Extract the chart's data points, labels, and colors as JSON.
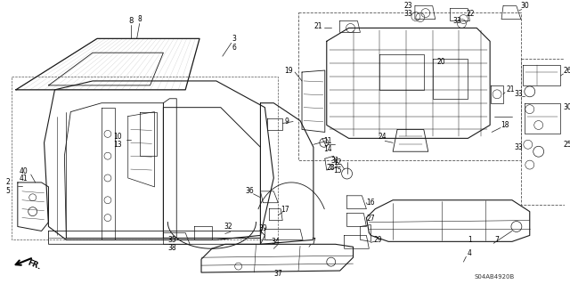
{
  "bg_color": "#ffffff",
  "line_color": "#1a1a1a",
  "label_color": "#000000",
  "watermark": "S04AB4920B",
  "figsize": [
    6.4,
    3.19
  ],
  "dpi": 100
}
